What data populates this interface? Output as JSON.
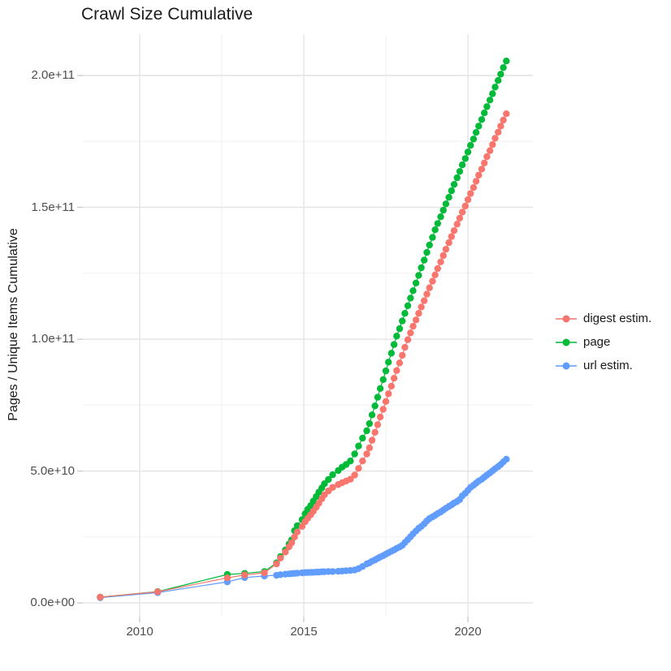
{
  "chart_data": {
    "type": "line",
    "title": "Crawl Size Cumulative",
    "xlabel": "",
    "ylabel": "Pages / Unique Items Cumulative",
    "value_unit": "billions (1e9) of pages / unique items",
    "grid": true,
    "legend_position": "right",
    "xlim": [
      2008.27,
      2021.98
    ],
    "ylim_e9": [
      -5.2,
      215.7
    ],
    "x_ticks": [
      {
        "value": 2010,
        "label": "2010"
      },
      {
        "value": 2015,
        "label": "2015"
      },
      {
        "value": 2020,
        "label": "2020"
      }
    ],
    "y_ticks": [
      {
        "value_e9": 0,
        "label": "0.0e+00"
      },
      {
        "value_e9": 50,
        "label": "5.0e+10"
      },
      {
        "value_e9": 100,
        "label": "1.0e+11"
      },
      {
        "value_e9": 150,
        "label": "1.5e+11"
      },
      {
        "value_e9": 200,
        "label": "2.0e+11"
      }
    ],
    "x_minor": [
      2012.5,
      2017.5
    ],
    "y_minor_e9": [
      25,
      75,
      125,
      175
    ],
    "grid_major_color": "#e4e4e4",
    "grid_minor_color": "#f0f0f0",
    "tick_color": "#cfcfcf",
    "series": [
      {
        "name": "digest estim.",
        "color": "#F8766D",
        "points": [
          [
            2008.8,
            2.2
          ],
          [
            2010.55,
            4.2
          ],
          [
            2012.67,
            9.5
          ],
          [
            2013.2,
            10.6
          ],
          [
            2013.8,
            11.4
          ],
          [
            2014.17,
            14.8
          ],
          [
            2014.29,
            17
          ],
          [
            2014.44,
            19.3
          ],
          [
            2014.55,
            21.3
          ],
          [
            2014.63,
            22.8
          ],
          [
            2014.72,
            25
          ],
          [
            2014.8,
            26.9
          ],
          [
            2014.95,
            29
          ],
          [
            2015.04,
            30.8
          ],
          [
            2015.12,
            32.1
          ],
          [
            2015.21,
            33.4
          ],
          [
            2015.29,
            34.8
          ],
          [
            2015.38,
            36.3
          ],
          [
            2015.46,
            37.8
          ],
          [
            2015.55,
            39.5
          ],
          [
            2015.63,
            41
          ],
          [
            2015.75,
            42.5
          ],
          [
            2015.88,
            43.8
          ],
          [
            2016.05,
            44.9
          ],
          [
            2016.17,
            45.6
          ],
          [
            2016.29,
            46.2
          ],
          [
            2016.42,
            46.9
          ],
          [
            2016.55,
            48.5
          ],
          [
            2016.67,
            51
          ],
          [
            2016.79,
            53.8
          ],
          [
            2016.92,
            56.5
          ],
          [
            2017,
            58.8
          ],
          [
            2017.08,
            61.7
          ],
          [
            2017.17,
            64.7
          ],
          [
            2017.25,
            67.6
          ],
          [
            2017.33,
            70.5
          ],
          [
            2017.42,
            73.4
          ],
          [
            2017.5,
            76.4
          ],
          [
            2017.58,
            79.3
          ],
          [
            2017.67,
            82.2
          ],
          [
            2017.75,
            85.2
          ],
          [
            2017.83,
            88.1
          ],
          [
            2017.92,
            91
          ],
          [
            2018,
            93.9
          ],
          [
            2018.08,
            96.9
          ],
          [
            2018.17,
            99.8
          ],
          [
            2018.25,
            102.4
          ],
          [
            2018.33,
            104.9
          ],
          [
            2018.42,
            107.3
          ],
          [
            2018.5,
            109.8
          ],
          [
            2018.58,
            112.2
          ],
          [
            2018.67,
            114.6
          ],
          [
            2018.75,
            117.1
          ],
          [
            2018.83,
            119.5
          ],
          [
            2018.92,
            122
          ],
          [
            2019,
            124.4
          ],
          [
            2019.08,
            126.8
          ],
          [
            2019.17,
            129.3
          ],
          [
            2019.25,
            131.7
          ],
          [
            2019.33,
            134.1
          ],
          [
            2019.42,
            136.6
          ],
          [
            2019.5,
            138.9
          ],
          [
            2019.58,
            141.2
          ],
          [
            2019.67,
            143.6
          ],
          [
            2019.75,
            145.9
          ],
          [
            2019.83,
            148.2
          ],
          [
            2019.92,
            150.5
          ],
          [
            2020,
            152.9
          ],
          [
            2020.08,
            155.2
          ],
          [
            2020.17,
            157.5
          ],
          [
            2020.25,
            159.9
          ],
          [
            2020.33,
            162.2
          ],
          [
            2020.42,
            164.5
          ],
          [
            2020.5,
            166.8
          ],
          [
            2020.58,
            169.2
          ],
          [
            2020.67,
            171.5
          ],
          [
            2020.75,
            173.8
          ],
          [
            2020.83,
            176.2
          ],
          [
            2020.92,
            178.5
          ],
          [
            2021,
            180.8
          ],
          [
            2021.08,
            183.1
          ],
          [
            2021.17,
            185.5
          ]
        ]
      },
      {
        "name": "page",
        "color": "#00BA38",
        "points": [
          [
            2008.8,
            2.2
          ],
          [
            2010.55,
            4.3
          ],
          [
            2012.67,
            10.8
          ],
          [
            2013.2,
            11.2
          ],
          [
            2013.8,
            11.9
          ],
          [
            2014.17,
            15.2
          ],
          [
            2014.29,
            17.6
          ],
          [
            2014.44,
            20.1
          ],
          [
            2014.55,
            22.3
          ],
          [
            2014.63,
            23.9
          ],
          [
            2014.72,
            27.4
          ],
          [
            2014.8,
            29.3
          ],
          [
            2014.95,
            31.6
          ],
          [
            2015.04,
            33.8
          ],
          [
            2015.12,
            35.5
          ],
          [
            2015.21,
            36.9
          ],
          [
            2015.29,
            38.6
          ],
          [
            2015.38,
            40.3
          ],
          [
            2015.46,
            42
          ],
          [
            2015.55,
            43.6
          ],
          [
            2015.63,
            45.2
          ],
          [
            2015.75,
            46.8
          ],
          [
            2015.88,
            48.6
          ],
          [
            2016.05,
            50.2
          ],
          [
            2016.17,
            51.5
          ],
          [
            2016.29,
            52.5
          ],
          [
            2016.42,
            53.8
          ],
          [
            2016.55,
            56.5
          ],
          [
            2016.67,
            59.5
          ],
          [
            2016.79,
            62.5
          ],
          [
            2016.92,
            65.3
          ],
          [
            2017,
            68
          ],
          [
            2017.08,
            71.3
          ],
          [
            2017.17,
            74.7
          ],
          [
            2017.25,
            78
          ],
          [
            2017.33,
            81.3
          ],
          [
            2017.42,
            84.7
          ],
          [
            2017.5,
            88
          ],
          [
            2017.58,
            91.3
          ],
          [
            2017.67,
            94.7
          ],
          [
            2017.75,
            98
          ],
          [
            2017.83,
            101.2
          ],
          [
            2017.92,
            104
          ],
          [
            2018,
            106.9
          ],
          [
            2018.08,
            109.8
          ],
          [
            2018.17,
            112.7
          ],
          [
            2018.25,
            115.6
          ],
          [
            2018.33,
            118.4
          ],
          [
            2018.42,
            121.3
          ],
          [
            2018.5,
            124.2
          ],
          [
            2018.58,
            127.1
          ],
          [
            2018.67,
            130
          ],
          [
            2018.75,
            132.9
          ],
          [
            2018.83,
            135.7
          ],
          [
            2018.92,
            138.6
          ],
          [
            2019,
            141.5
          ],
          [
            2019.08,
            143.9
          ],
          [
            2019.17,
            146.4
          ],
          [
            2019.25,
            148.9
          ],
          [
            2019.33,
            151.3
          ],
          [
            2019.42,
            153.8
          ],
          [
            2019.5,
            156.3
          ],
          [
            2019.58,
            158.7
          ],
          [
            2019.67,
            161.2
          ],
          [
            2019.75,
            163.6
          ],
          [
            2019.83,
            166.1
          ],
          [
            2019.92,
            168.5
          ],
          [
            2020,
            171
          ],
          [
            2020.08,
            173.5
          ],
          [
            2020.17,
            175.9
          ],
          [
            2020.25,
            178.4
          ],
          [
            2020.33,
            180.8
          ],
          [
            2020.42,
            183.3
          ],
          [
            2020.5,
            185.8
          ],
          [
            2020.58,
            188.2
          ],
          [
            2020.67,
            190.7
          ],
          [
            2020.75,
            193.1
          ],
          [
            2020.83,
            195.6
          ],
          [
            2020.92,
            198.1
          ],
          [
            2021,
            200.5
          ],
          [
            2021.08,
            203
          ],
          [
            2021.17,
            205.5
          ]
        ]
      },
      {
        "name": "url estim.",
        "color": "#619CFF",
        "points": [
          [
            2008.8,
            2
          ],
          [
            2010.55,
            3.9
          ],
          [
            2012.67,
            8
          ],
          [
            2013.2,
            9.6
          ],
          [
            2013.8,
            10.2
          ],
          [
            2014.17,
            10.5
          ],
          [
            2014.29,
            10.7
          ],
          [
            2014.44,
            10.9
          ],
          [
            2014.55,
            11
          ],
          [
            2014.63,
            11.1
          ],
          [
            2014.72,
            11.2
          ],
          [
            2014.8,
            11.3
          ],
          [
            2014.95,
            11.4
          ],
          [
            2015.04,
            11.5
          ],
          [
            2015.12,
            11.5
          ],
          [
            2015.21,
            11.6
          ],
          [
            2015.29,
            11.6
          ],
          [
            2015.38,
            11.7
          ],
          [
            2015.46,
            11.7
          ],
          [
            2015.55,
            11.8
          ],
          [
            2015.63,
            11.8
          ],
          [
            2015.75,
            11.9
          ],
          [
            2015.88,
            11.9
          ],
          [
            2016.05,
            12
          ],
          [
            2016.17,
            12.1
          ],
          [
            2016.29,
            12.2
          ],
          [
            2016.42,
            12.3
          ],
          [
            2016.55,
            12.5
          ],
          [
            2016.67,
            13
          ],
          [
            2016.79,
            13.8
          ],
          [
            2016.92,
            14.8
          ],
          [
            2017,
            15.2
          ],
          [
            2017.08,
            15.8
          ],
          [
            2017.17,
            16.3
          ],
          [
            2017.25,
            16.9
          ],
          [
            2017.33,
            17.4
          ],
          [
            2017.42,
            17.9
          ],
          [
            2017.5,
            18.5
          ],
          [
            2017.58,
            19
          ],
          [
            2017.67,
            19.6
          ],
          [
            2017.75,
            20.1
          ],
          [
            2017.83,
            20.7
          ],
          [
            2017.92,
            21.2
          ],
          [
            2018,
            21.8
          ],
          [
            2018.08,
            22.9
          ],
          [
            2018.17,
            24
          ],
          [
            2018.25,
            25.1
          ],
          [
            2018.33,
            26.2
          ],
          [
            2018.42,
            27.3
          ],
          [
            2018.5,
            28.3
          ],
          [
            2018.58,
            29
          ],
          [
            2018.67,
            30
          ],
          [
            2018.75,
            31.1
          ],
          [
            2018.83,
            32
          ],
          [
            2018.92,
            32.6
          ],
          [
            2019,
            33.2
          ],
          [
            2019.08,
            33.9
          ],
          [
            2019.17,
            34.5
          ],
          [
            2019.25,
            35.2
          ],
          [
            2019.33,
            35.9
          ],
          [
            2019.42,
            36.6
          ],
          [
            2019.5,
            37.2
          ],
          [
            2019.58,
            37.9
          ],
          [
            2019.67,
            38.5
          ],
          [
            2019.75,
            39.2
          ],
          [
            2019.83,
            40.6
          ],
          [
            2019.92,
            41.6
          ],
          [
            2020,
            42.7
          ],
          [
            2020.08,
            43.8
          ],
          [
            2020.17,
            44.6
          ],
          [
            2020.25,
            45.4
          ],
          [
            2020.33,
            46.2
          ],
          [
            2020.42,
            46.9
          ],
          [
            2020.5,
            47.7
          ],
          [
            2020.58,
            48.5
          ],
          [
            2020.67,
            49.3
          ],
          [
            2020.75,
            50.1
          ],
          [
            2020.83,
            50.9
          ],
          [
            2020.92,
            51.7
          ],
          [
            2021,
            52.5
          ],
          [
            2021.08,
            53.5
          ],
          [
            2021.17,
            54.5
          ]
        ]
      }
    ]
  }
}
